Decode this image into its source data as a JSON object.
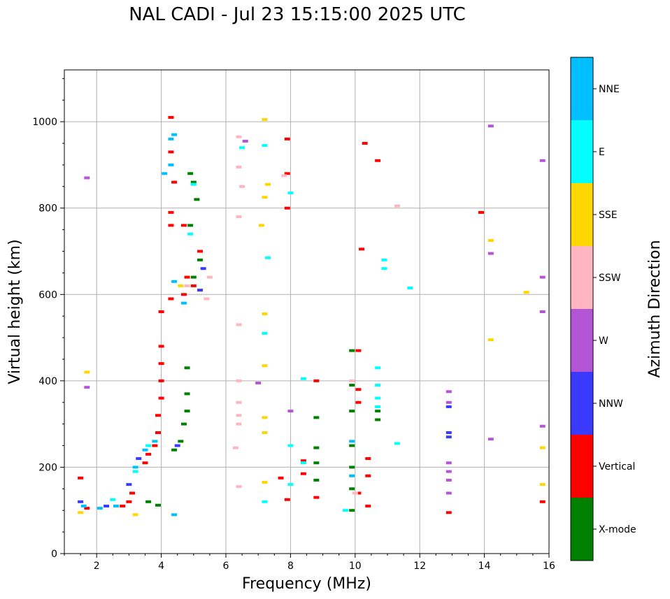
{
  "chart_data": {
    "type": "scatter",
    "title": "NAL CADI - Jul 23 15:15:00 2025 UTC",
    "xlabel": "Frequency (MHz)",
    "ylabel": "Virtual height (km)",
    "xlim": [
      1,
      16
    ],
    "ylim": [
      0,
      1120
    ],
    "xticks": [
      2,
      4,
      6,
      8,
      10,
      12,
      14,
      16
    ],
    "yticks": [
      0,
      200,
      400,
      600,
      800,
      1000
    ],
    "grid": true,
    "colorbar": {
      "label": "Azimuth Direction",
      "categories": [
        {
          "name": "X-mode",
          "color": "#008000"
        },
        {
          "name": "Vertical",
          "color": "#ff0000"
        },
        {
          "name": "NNW",
          "color": "#3a3aff"
        },
        {
          "name": "W",
          "color": "#b455d6"
        },
        {
          "name": "SSW",
          "color": "#ffb6c1"
        },
        {
          "name": "SSE",
          "color": "#ffd700"
        },
        {
          "name": "E",
          "color": "#00ffff"
        },
        {
          "name": "NNE",
          "color": "#00bfff"
        }
      ]
    },
    "series": [
      {
        "name": "X-mode",
        "points": [
          [
            3.6,
            120
          ],
          [
            3.9,
            112
          ],
          [
            4.4,
            240
          ],
          [
            4.6,
            260
          ],
          [
            4.7,
            300
          ],
          [
            4.8,
            330
          ],
          [
            4.8,
            370
          ],
          [
            4.8,
            430
          ],
          [
            4.9,
            880
          ],
          [
            5.0,
            860
          ],
          [
            5.1,
            820
          ],
          [
            5.0,
            640
          ],
          [
            5.2,
            680
          ],
          [
            4.9,
            760
          ],
          [
            8.8,
            315
          ],
          [
            8.8,
            245
          ],
          [
            8.8,
            210
          ],
          [
            8.8,
            170
          ],
          [
            9.9,
            470
          ],
          [
            9.9,
            390
          ],
          [
            9.9,
            330
          ],
          [
            9.9,
            250
          ],
          [
            9.9,
            200
          ],
          [
            9.9,
            150
          ],
          [
            9.9,
            100
          ],
          [
            10.7,
            310
          ],
          [
            10.7,
            330
          ]
        ]
      },
      {
        "name": "Vertical",
        "points": [
          [
            1.5,
            175
          ],
          [
            1.7,
            105
          ],
          [
            2.8,
            110
          ],
          [
            3.0,
            120
          ],
          [
            3.1,
            140
          ],
          [
            3.5,
            210
          ],
          [
            3.6,
            230
          ],
          [
            3.8,
            250
          ],
          [
            3.9,
            280
          ],
          [
            3.9,
            320
          ],
          [
            4.0,
            360
          ],
          [
            4.0,
            400
          ],
          [
            4.0,
            440
          ],
          [
            4.0,
            480
          ],
          [
            4.0,
            560
          ],
          [
            4.3,
            590
          ],
          [
            4.3,
            760
          ],
          [
            4.3,
            790
          ],
          [
            4.4,
            860
          ],
          [
            4.3,
            930
          ],
          [
            4.3,
            1010
          ],
          [
            4.7,
            760
          ],
          [
            4.7,
            600
          ],
          [
            4.8,
            640
          ],
          [
            5.0,
            620
          ],
          [
            5.2,
            700
          ],
          [
            7.9,
            960
          ],
          [
            7.9,
            880
          ],
          [
            7.9,
            800
          ],
          [
            7.7,
            175
          ],
          [
            7.9,
            125
          ],
          [
            8.4,
            215
          ],
          [
            8.4,
            185
          ],
          [
            8.8,
            400
          ],
          [
            8.8,
            130
          ],
          [
            10.2,
            705
          ],
          [
            10.3,
            950
          ],
          [
            10.7,
            910
          ],
          [
            10.1,
            470
          ],
          [
            10.1,
            380
          ],
          [
            10.1,
            350
          ],
          [
            10.1,
            140
          ],
          [
            10.4,
            220
          ],
          [
            10.4,
            180
          ],
          [
            10.4,
            110
          ],
          [
            12.9,
            95
          ],
          [
            13.9,
            790
          ],
          [
            15.8,
            120
          ]
        ]
      },
      {
        "name": "NNW",
        "points": [
          [
            1.5,
            120
          ],
          [
            2.3,
            110
          ],
          [
            3.0,
            160
          ],
          [
            3.3,
            220
          ],
          [
            4.5,
            250
          ],
          [
            5.2,
            610
          ],
          [
            5.3,
            660
          ],
          [
            12.9,
            270
          ],
          [
            12.9,
            280
          ],
          [
            12.9,
            340
          ]
        ]
      },
      {
        "name": "W",
        "points": [
          [
            1.7,
            870
          ],
          [
            1.7,
            385
          ],
          [
            6.6,
            955
          ],
          [
            7.0,
            395
          ],
          [
            8.0,
            330
          ],
          [
            12.9,
            375
          ],
          [
            12.9,
            350
          ],
          [
            12.9,
            210
          ],
          [
            12.9,
            190
          ],
          [
            12.9,
            170
          ],
          [
            12.9,
            140
          ],
          [
            14.2,
            990
          ],
          [
            14.2,
            695
          ],
          [
            14.2,
            265
          ],
          [
            15.8,
            910
          ],
          [
            15.8,
            640
          ],
          [
            15.8,
            560
          ],
          [
            15.8,
            295
          ]
        ]
      },
      {
        "name": "SSW",
        "points": [
          [
            4.8,
            620
          ],
          [
            5.4,
            590
          ],
          [
            5.5,
            640
          ],
          [
            6.4,
            965
          ],
          [
            6.4,
            895
          ],
          [
            6.5,
            850
          ],
          [
            6.4,
            780
          ],
          [
            6.4,
            530
          ],
          [
            6.4,
            400
          ],
          [
            6.4,
            350
          ],
          [
            6.4,
            320
          ],
          [
            6.4,
            300
          ],
          [
            6.3,
            245
          ],
          [
            6.4,
            155
          ],
          [
            7.8,
            875
          ],
          [
            9.9,
            400
          ],
          [
            10.0,
            140
          ],
          [
            11.3,
            805
          ]
        ]
      },
      {
        "name": "SSE",
        "points": [
          [
            1.5,
            95
          ],
          [
            1.7,
            420
          ],
          [
            3.2,
            90
          ],
          [
            4.6,
            620
          ],
          [
            7.2,
            1005
          ],
          [
            7.3,
            855
          ],
          [
            7.2,
            825
          ],
          [
            7.1,
            760
          ],
          [
            7.2,
            555
          ],
          [
            7.2,
            435
          ],
          [
            7.2,
            315
          ],
          [
            7.2,
            280
          ],
          [
            7.2,
            165
          ],
          [
            14.2,
            725
          ],
          [
            14.2,
            495
          ],
          [
            15.3,
            605
          ],
          [
            15.8,
            245
          ],
          [
            15.8,
            160
          ]
        ]
      },
      {
        "name": "E",
        "points": [
          [
            2.5,
            125
          ],
          [
            3.2,
            190
          ],
          [
            3.6,
            250
          ],
          [
            4.9,
            740
          ],
          [
            5.0,
            855
          ],
          [
            6.5,
            940
          ],
          [
            7.2,
            945
          ],
          [
            7.3,
            685
          ],
          [
            7.2,
            510
          ],
          [
            7.2,
            120
          ],
          [
            8.0,
            835
          ],
          [
            8.0,
            250
          ],
          [
            8.0,
            160
          ],
          [
            8.4,
            405
          ],
          [
            8.4,
            210
          ],
          [
            9.7,
            100
          ],
          [
            10.7,
            430
          ],
          [
            10.7,
            390
          ],
          [
            10.7,
            360
          ],
          [
            10.7,
            340
          ],
          [
            10.9,
            680
          ],
          [
            10.9,
            660
          ],
          [
            11.3,
            255
          ],
          [
            11.7,
            615
          ]
        ]
      },
      {
        "name": "NNE",
        "points": [
          [
            1.6,
            110
          ],
          [
            2.1,
            105
          ],
          [
            2.6,
            110
          ],
          [
            3.2,
            200
          ],
          [
            3.5,
            240
          ],
          [
            3.8,
            260
          ],
          [
            4.1,
            880
          ],
          [
            4.3,
            900
          ],
          [
            4.3,
            960
          ],
          [
            4.4,
            970
          ],
          [
            4.4,
            630
          ],
          [
            4.7,
            580
          ],
          [
            9.9,
            260
          ],
          [
            9.9,
            180
          ],
          [
            4.4,
            90
          ]
        ]
      }
    ]
  }
}
